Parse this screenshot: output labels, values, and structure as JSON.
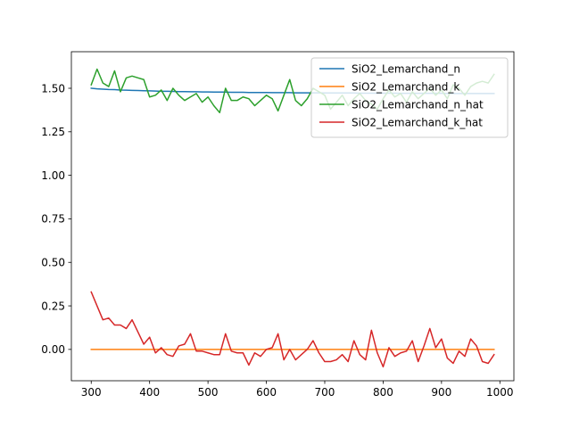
{
  "chart_data": {
    "type": "line",
    "title": "",
    "xlabel": "",
    "ylabel": "",
    "xlim": [
      266,
      1024
    ],
    "ylim": [
      -0.18,
      1.71
    ],
    "xticks": [
      300,
      400,
      500,
      600,
      700,
      800,
      900,
      1000
    ],
    "yticks": [
      0.0,
      0.25,
      0.5,
      0.75,
      1.0,
      1.25,
      1.5
    ],
    "ytick_labels": [
      "0.00",
      "0.25",
      "0.50",
      "0.75",
      "1.00",
      "1.25",
      "1.50"
    ],
    "grid": false,
    "legend_position": "top-right",
    "x": [
      300,
      310,
      320,
      330,
      340,
      350,
      360,
      370,
      380,
      390,
      400,
      410,
      420,
      430,
      440,
      450,
      460,
      470,
      480,
      490,
      500,
      510,
      520,
      530,
      540,
      550,
      560,
      570,
      580,
      590,
      600,
      610,
      620,
      630,
      640,
      650,
      660,
      670,
      680,
      690,
      700,
      710,
      720,
      730,
      740,
      750,
      760,
      770,
      780,
      790,
      800,
      810,
      820,
      830,
      840,
      850,
      860,
      870,
      880,
      890,
      900,
      910,
      920,
      930,
      940,
      950,
      960,
      970,
      980,
      990
    ],
    "series": [
      {
        "name": "SiO2_Lemarchand_n",
        "color": "#1f77b4",
        "values": [
          1.5,
          1.497,
          1.495,
          1.493,
          1.492,
          1.49,
          1.489,
          1.488,
          1.487,
          1.486,
          1.485,
          1.484,
          1.483,
          1.483,
          1.482,
          1.481,
          1.481,
          1.48,
          1.48,
          1.479,
          1.479,
          1.478,
          1.478,
          1.478,
          1.477,
          1.477,
          1.477,
          1.476,
          1.476,
          1.476,
          1.476,
          1.475,
          1.475,
          1.475,
          1.475,
          1.474,
          1.474,
          1.474,
          1.474,
          1.474,
          1.473,
          1.473,
          1.473,
          1.473,
          1.473,
          1.473,
          1.472,
          1.472,
          1.472,
          1.472,
          1.472,
          1.472,
          1.472,
          1.471,
          1.471,
          1.471,
          1.471,
          1.471,
          1.471,
          1.471,
          1.471,
          1.47,
          1.47,
          1.47,
          1.47,
          1.47,
          1.47,
          1.47,
          1.47,
          1.47
        ]
      },
      {
        "name": "SiO2_Lemarchand_k",
        "color": "#ff7f0e",
        "values": [
          0,
          0,
          0,
          0,
          0,
          0,
          0,
          0,
          0,
          0,
          0,
          0,
          0,
          0,
          0,
          0,
          0,
          0,
          0,
          0,
          0,
          0,
          0,
          0,
          0,
          0,
          0,
          0,
          0,
          0,
          0,
          0,
          0,
          0,
          0,
          0,
          0,
          0,
          0,
          0,
          0,
          0,
          0,
          0,
          0,
          0,
          0,
          0,
          0,
          0,
          0,
          0,
          0,
          0,
          0,
          0,
          0,
          0,
          0,
          0,
          0,
          0,
          0,
          0,
          0,
          0,
          0,
          0,
          0,
          0
        ]
      },
      {
        "name": "SiO2_Lemarchand_n_hat",
        "color": "#2ca02c",
        "values": [
          1.52,
          1.61,
          1.53,
          1.51,
          1.6,
          1.48,
          1.56,
          1.57,
          1.56,
          1.55,
          1.45,
          1.46,
          1.49,
          1.43,
          1.5,
          1.46,
          1.43,
          1.45,
          1.47,
          1.42,
          1.45,
          1.4,
          1.36,
          1.5,
          1.43,
          1.43,
          1.45,
          1.44,
          1.4,
          1.43,
          1.46,
          1.44,
          1.37,
          1.46,
          1.55,
          1.43,
          1.4,
          1.44,
          1.5,
          1.48,
          1.46,
          1.38,
          1.42,
          1.46,
          1.4,
          1.44,
          1.47,
          1.43,
          1.41,
          1.38,
          1.44,
          1.49,
          1.45,
          1.47,
          1.42,
          1.48,
          1.44,
          1.47,
          1.5,
          1.46,
          1.49,
          1.44,
          1.52,
          1.5,
          1.46,
          1.51,
          1.53,
          1.54,
          1.53,
          1.58
        ]
      },
      {
        "name": "SiO2_Lemarchand_k_hat",
        "color": "#d62728",
        "values": [
          0.33,
          0.25,
          0.17,
          0.18,
          0.14,
          0.14,
          0.12,
          0.17,
          0.1,
          0.03,
          0.07,
          -0.02,
          0.01,
          -0.03,
          -0.04,
          0.02,
          0.03,
          0.09,
          -0.01,
          -0.01,
          -0.02,
          -0.03,
          -0.03,
          0.09,
          -0.01,
          -0.02,
          -0.02,
          -0.09,
          -0.02,
          -0.04,
          0.0,
          0.01,
          0.09,
          -0.06,
          0.0,
          -0.06,
          -0.03,
          0.0,
          0.05,
          -0.02,
          -0.07,
          -0.07,
          -0.06,
          -0.03,
          -0.07,
          0.05,
          -0.03,
          -0.06,
          0.11,
          -0.02,
          -0.1,
          0.01,
          -0.04,
          -0.02,
          -0.01,
          0.05,
          -0.07,
          0.02,
          0.12,
          0.01,
          0.06,
          -0.05,
          -0.08,
          -0.01,
          -0.04,
          0.06,
          0.02,
          -0.07,
          -0.08,
          -0.03
        ]
      }
    ]
  }
}
